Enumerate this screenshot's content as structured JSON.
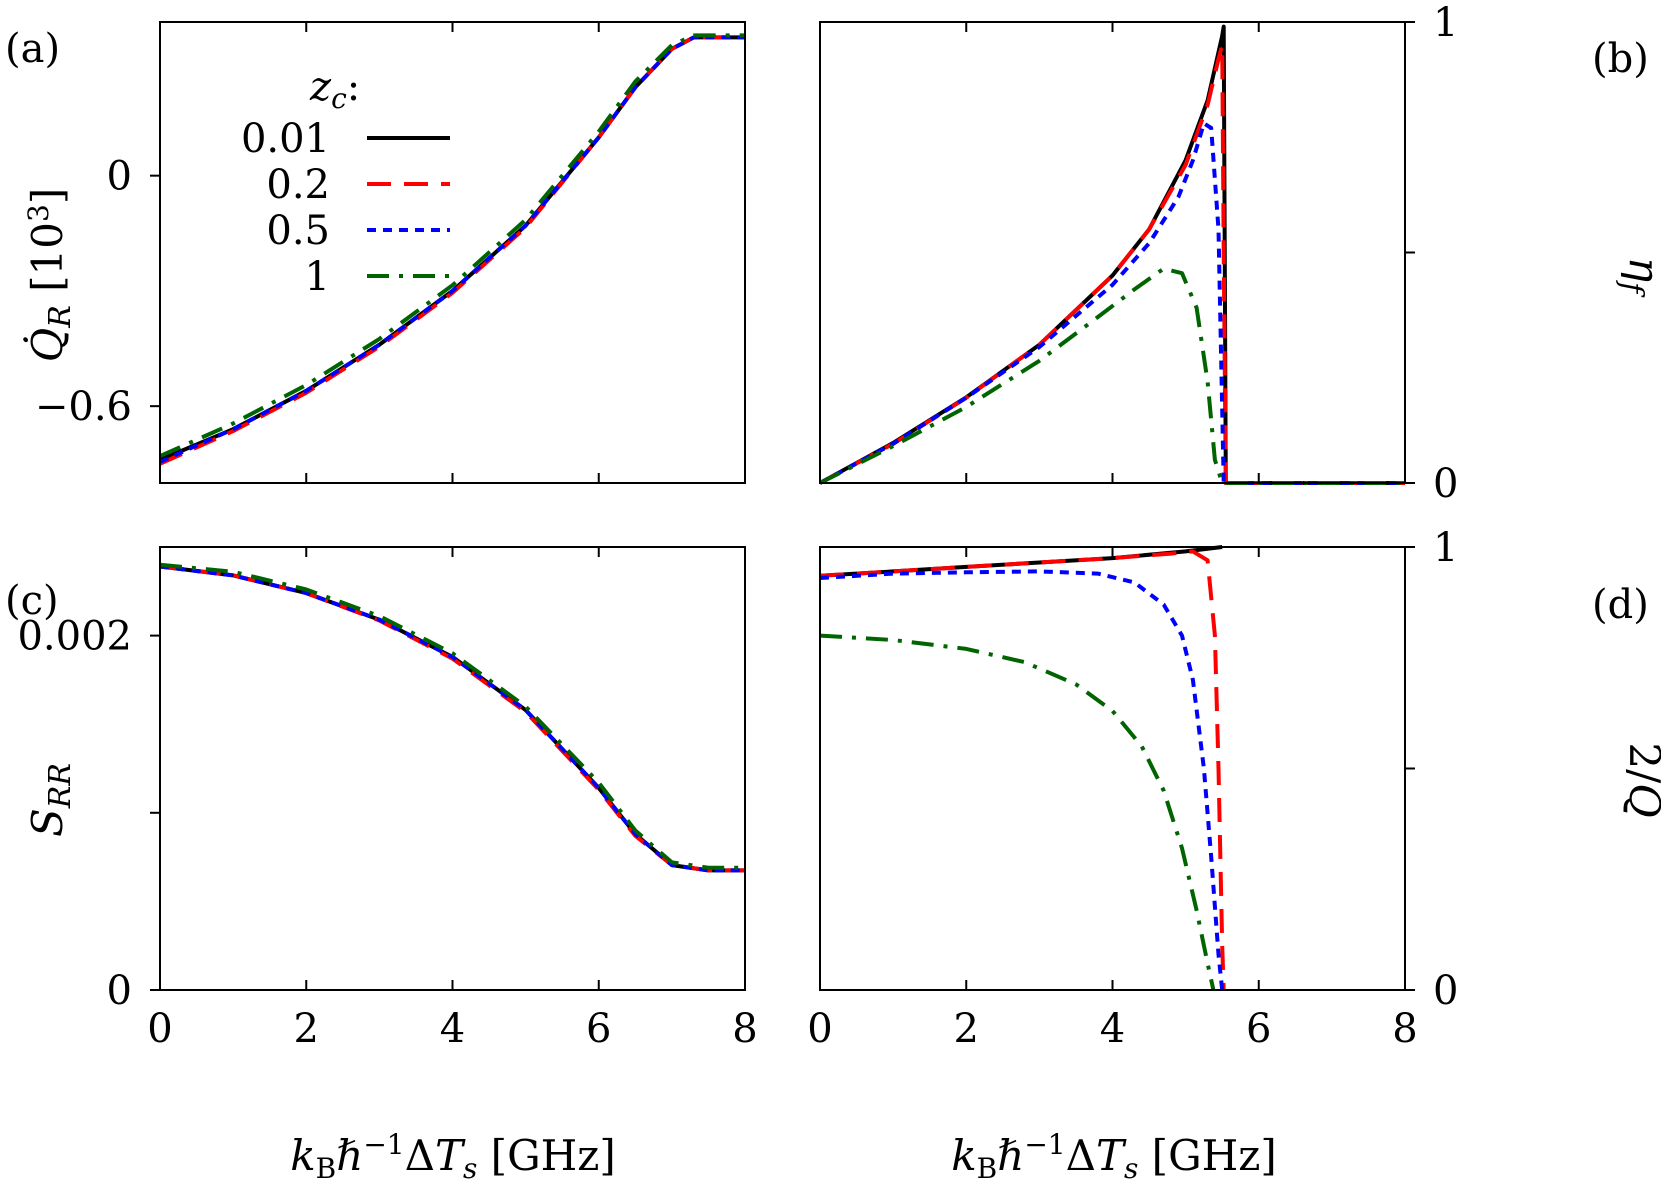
{
  "chart_data": [
    {
      "panel": "(a)",
      "type": "line",
      "ylabel": "Q̇_R [10³]",
      "xlim": [
        0,
        8
      ],
      "ylim": [
        -0.8,
        0.4
      ],
      "yticks": [
        {
          "v": 0,
          "label": "0"
        },
        {
          "v": -0.6,
          "label": "−0.6"
        }
      ],
      "legend": {
        "title": "z_c:",
        "placement": "top-left",
        "entries": [
          "0.01",
          "0.2",
          "0.5",
          "1"
        ]
      },
      "series": [
        {
          "name": "0.01",
          "color": "#000000",
          "dash": "solid",
          "x": [
            0,
            1,
            2,
            3,
            4,
            5,
            6,
            6.5,
            7,
            7.3,
            7.6,
            8
          ],
          "y": [
            -0.74,
            -0.66,
            -0.56,
            -0.44,
            -0.3,
            -0.13,
            0.1,
            0.23,
            0.33,
            0.36,
            0.36,
            0.36
          ]
        },
        {
          "name": "0.2",
          "color": "#ff0000",
          "dash": "long",
          "x": [
            0,
            1,
            2,
            3,
            4,
            5,
            6,
            6.5,
            7,
            7.3,
            7.6,
            8
          ],
          "y": [
            -0.75,
            -0.665,
            -0.565,
            -0.445,
            -0.305,
            -0.135,
            0.1,
            0.23,
            0.33,
            0.36,
            0.36,
            0.36
          ]
        },
        {
          "name": "0.5",
          "color": "#0000ff",
          "dash": "short",
          "x": [
            0,
            1,
            2,
            3,
            4,
            5,
            6,
            6.5,
            7,
            7.3,
            7.6,
            8
          ],
          "y": [
            -0.745,
            -0.66,
            -0.56,
            -0.44,
            -0.3,
            -0.13,
            0.1,
            0.23,
            0.33,
            0.36,
            0.36,
            0.36
          ]
        },
        {
          "name": "1",
          "color": "#006400",
          "dash": "dashdot",
          "x": [
            0,
            1,
            2,
            3,
            4,
            5,
            6,
            6.5,
            7,
            7.3,
            7.6,
            8
          ],
          "y": [
            -0.73,
            -0.645,
            -0.545,
            -0.425,
            -0.285,
            -0.115,
            0.115,
            0.245,
            0.34,
            0.365,
            0.365,
            0.365
          ]
        }
      ]
    },
    {
      "panel": "(b)",
      "type": "line",
      "ylabel": "η_f",
      "yaxis_side": "right",
      "xlim": [
        0,
        8
      ],
      "ylim": [
        0,
        1
      ],
      "yticks": [
        {
          "v": 0,
          "label": "0"
        },
        {
          "v": 0.5,
          "label": ""
        },
        {
          "v": 1,
          "label": "1"
        }
      ],
      "series": [
        {
          "name": "0.01",
          "color": "#000000",
          "dash": "solid",
          "x": [
            0,
            1,
            2,
            3,
            4,
            4.5,
            5,
            5.3,
            5.5,
            5.52,
            5.55,
            8
          ],
          "y": [
            0,
            0.087,
            0.186,
            0.3,
            0.45,
            0.55,
            0.7,
            0.83,
            0.97,
            0.99,
            0,
            0
          ]
        },
        {
          "name": "0.2",
          "color": "#ff0000",
          "dash": "long",
          "x": [
            0,
            1,
            2,
            3,
            4,
            4.5,
            5,
            5.3,
            5.45,
            5.5,
            5.52,
            5.55,
            8
          ],
          "y": [
            0,
            0.085,
            0.185,
            0.3,
            0.45,
            0.55,
            0.69,
            0.82,
            0.92,
            0.95,
            0.5,
            0,
            0
          ]
        },
        {
          "name": "0.5",
          "color": "#0000ff",
          "dash": "short",
          "x": [
            0,
            1,
            2,
            3,
            4,
            4.5,
            4.9,
            5.1,
            5.25,
            5.35,
            5.45,
            5.52,
            8
          ],
          "y": [
            0,
            0.085,
            0.185,
            0.295,
            0.43,
            0.52,
            0.62,
            0.7,
            0.78,
            0.77,
            0.55,
            0,
            0
          ]
        },
        {
          "name": "1",
          "color": "#006400",
          "dash": "dashdot",
          "x": [
            0,
            1,
            2,
            3,
            3.8,
            4.3,
            4.7,
            4.95,
            5.15,
            5.3,
            5.4,
            5.5,
            8
          ],
          "y": [
            0,
            0.08,
            0.165,
            0.265,
            0.36,
            0.42,
            0.465,
            0.455,
            0.38,
            0.22,
            0.05,
            0,
            0
          ]
        }
      ]
    },
    {
      "panel": "(c)",
      "type": "line",
      "ylabel": "S_RR",
      "xlabel": "k_B ℏ⁻¹ ΔT_s [GHz]",
      "xlim": [
        0,
        8
      ],
      "ylim": [
        0,
        0.0025
      ],
      "xticks": [
        "0",
        "2",
        "4",
        "6",
        "8"
      ],
      "yticks": [
        {
          "v": 0,
          "label": "0"
        },
        {
          "v": 0.001,
          "label": ""
        },
        {
          "v": 0.002,
          "label": "0.002"
        }
      ],
      "series": [
        {
          "name": "0.01",
          "color": "#000000",
          "dash": "solid",
          "x": [
            0,
            1,
            2,
            3,
            4,
            5,
            6,
            6.5,
            7,
            7.5,
            8
          ],
          "y": [
            0.00239,
            0.00234,
            0.00224,
            0.00209,
            0.00188,
            0.00158,
            0.00114,
            0.00088,
            0.000705,
            0.000675,
            0.000675
          ]
        },
        {
          "name": "0.2",
          "color": "#ff0000",
          "dash": "long",
          "x": [
            0,
            1,
            2,
            3,
            4,
            5,
            6,
            6.5,
            7,
            7.5,
            8
          ],
          "y": [
            0.00239,
            0.00234,
            0.00224,
            0.002085,
            0.00187,
            0.00157,
            0.00113,
            0.00087,
            0.000705,
            0.000675,
            0.000675
          ]
        },
        {
          "name": "0.5",
          "color": "#0000ff",
          "dash": "short",
          "x": [
            0,
            1,
            2,
            3,
            4,
            5,
            6,
            6.5,
            7,
            7.5,
            8
          ],
          "y": [
            0.00239,
            0.00234,
            0.00224,
            0.00209,
            0.00188,
            0.00158,
            0.00114,
            0.00088,
            0.000705,
            0.000675,
            0.000675
          ]
        },
        {
          "name": "1",
          "color": "#006400",
          "dash": "dashdot",
          "x": [
            0,
            1,
            2,
            3,
            4,
            5,
            6,
            6.5,
            7,
            7.5,
            8
          ],
          "y": [
            0.0024,
            0.00236,
            0.00226,
            0.00211,
            0.0019,
            0.0016,
            0.00117,
            0.0009,
            0.00072,
            0.00069,
            0.00069
          ]
        }
      ]
    },
    {
      "panel": "(d)",
      "type": "line",
      "ylabel": "2/Q",
      "yaxis_side": "right",
      "xlabel": "k_B ℏ⁻¹ ΔT_s [GHz]",
      "xlim": [
        0,
        8
      ],
      "ylim": [
        0,
        1
      ],
      "xticks": [
        "0",
        "2",
        "4",
        "6",
        "8"
      ],
      "yticks": [
        {
          "v": 0,
          "label": "0"
        },
        {
          "v": 0.5,
          "label": ""
        },
        {
          "v": 1,
          "label": "1"
        }
      ],
      "series": [
        {
          "name": "0.01",
          "color": "#000000",
          "dash": "solid",
          "x": [
            0,
            1,
            2,
            3,
            4,
            5,
            5.5
          ],
          "y": [
            0.935,
            0.945,
            0.955,
            0.965,
            0.975,
            0.99,
            1.0
          ]
        },
        {
          "name": "0.2",
          "color": "#ff0000",
          "dash": "long",
          "x": [
            0,
            1,
            2,
            3,
            4,
            4.8,
            5.1,
            5.3,
            5.4,
            5.45,
            5.5,
            5.52
          ],
          "y": [
            0.935,
            0.945,
            0.955,
            0.965,
            0.975,
            0.985,
            0.99,
            0.97,
            0.8,
            0.5,
            0.1,
            0
          ]
        },
        {
          "name": "0.5",
          "color": "#0000ff",
          "dash": "short",
          "x": [
            0,
            1,
            2,
            3,
            3.8,
            4.3,
            4.7,
            4.95,
            5.1,
            5.25,
            5.35,
            5.45,
            5.5
          ],
          "y": [
            0.93,
            0.94,
            0.943,
            0.945,
            0.94,
            0.92,
            0.87,
            0.8,
            0.7,
            0.5,
            0.3,
            0.08,
            0
          ]
        },
        {
          "name": "1",
          "color": "#006400",
          "dash": "dashdot",
          "x": [
            0,
            1,
            2,
            2.8,
            3.5,
            4,
            4.4,
            4.7,
            4.95,
            5.15,
            5.3,
            5.38
          ],
          "y": [
            0.8,
            0.79,
            0.77,
            0.74,
            0.69,
            0.63,
            0.55,
            0.45,
            0.32,
            0.18,
            0.06,
            0
          ]
        }
      ]
    }
  ]
}
